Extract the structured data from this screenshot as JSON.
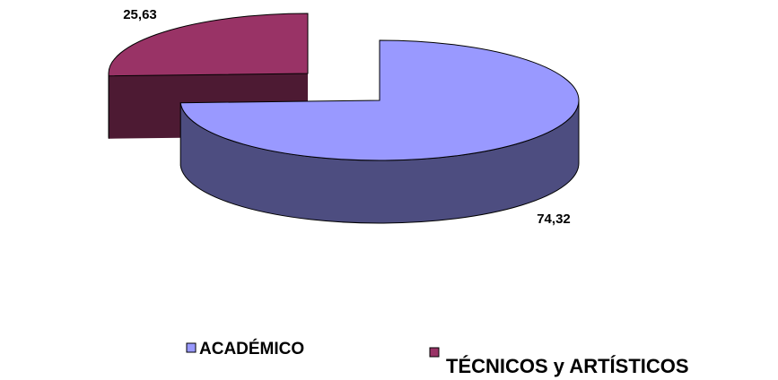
{
  "chart_data": {
    "type": "pie3d",
    "categories": [
      "ACADÉMICO",
      "TÉCNICOS y ARTÍSTICOS"
    ],
    "values": [
      74.32,
      25.63
    ],
    "value_labels": [
      "74,32",
      "25,63"
    ],
    "colors": [
      "#9999ff",
      "#993366"
    ],
    "legend": "bottom"
  }
}
